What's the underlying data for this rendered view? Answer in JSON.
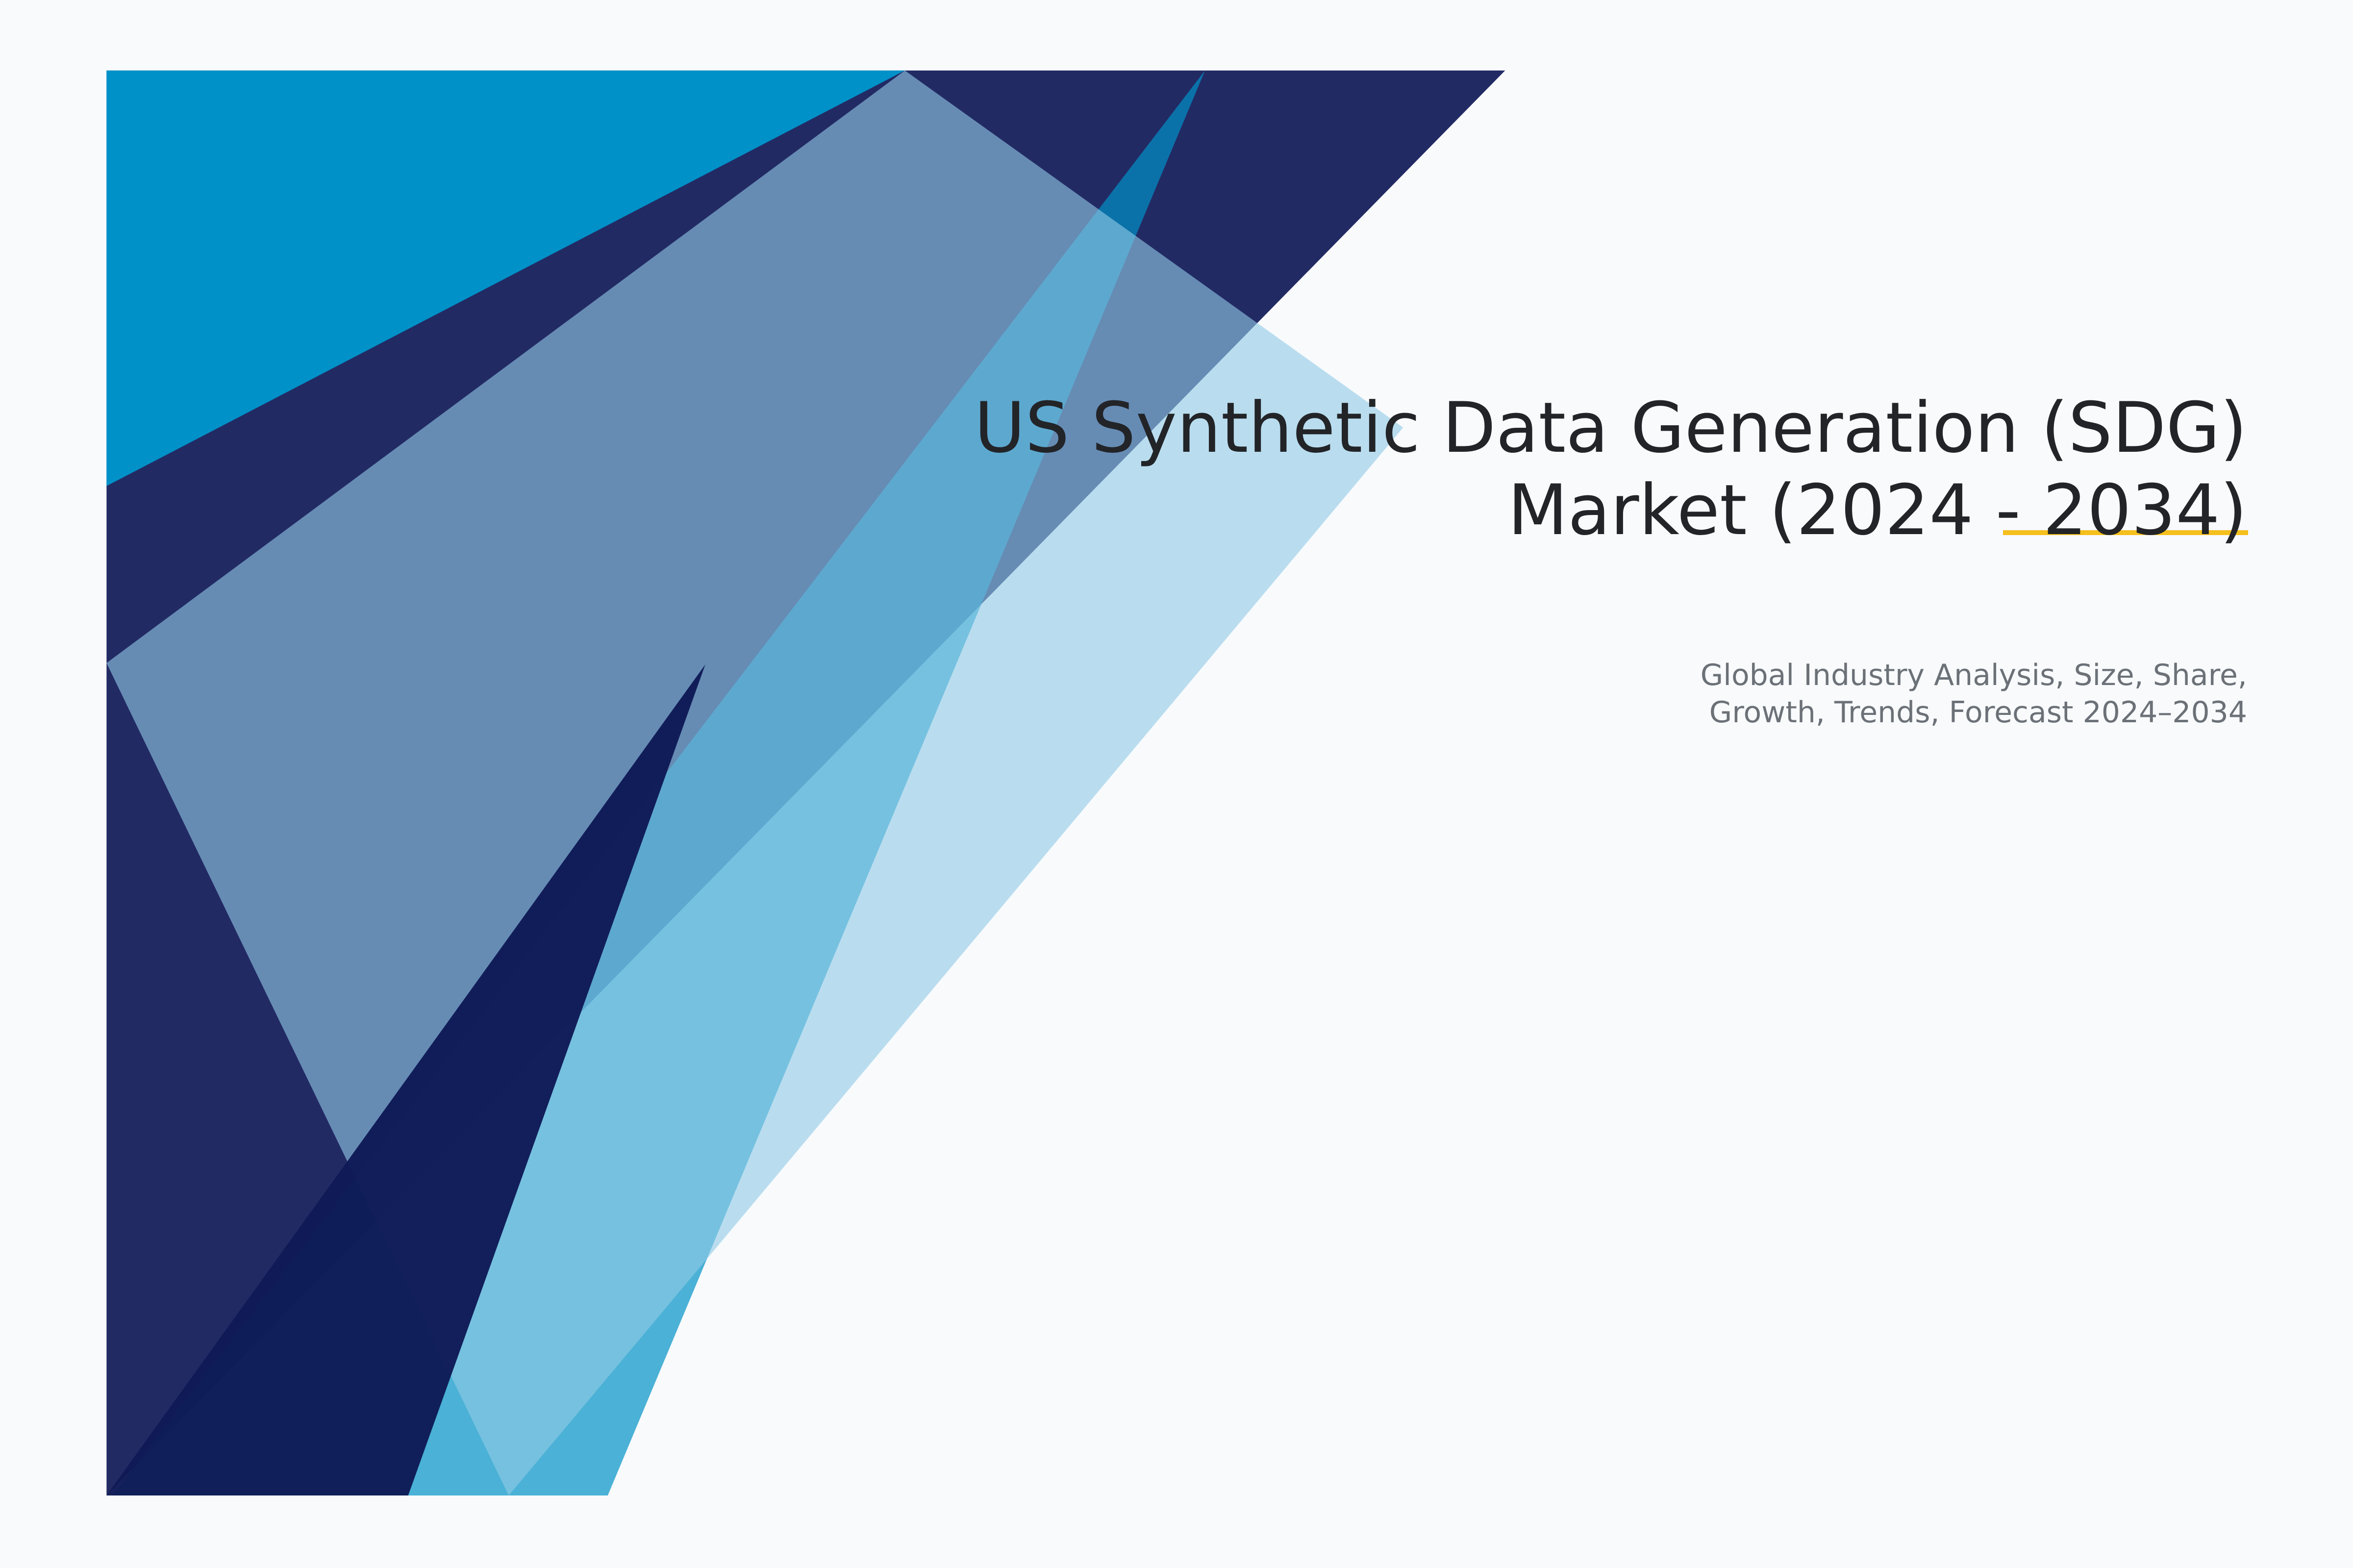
{
  "cover": {
    "title_line1": "US Synthetic Data Generation (SDG)",
    "title_line2": "Market (2024 - 2034)",
    "subtitle_line1": "Global Industry Analysis, Size, Share,",
    "subtitle_line2": "Growth, Trends, Forecast 2024–2034"
  },
  "colors": {
    "background": "#f8fafc",
    "navy": "#222a64",
    "cyan": "#0091c8",
    "strip_blue": "#0191c6",
    "light_blue": "#91cae7",
    "deep_navy": "#0e1a56",
    "accent_yellow": "#f5bf1d",
    "title_text": "#222428",
    "subtitle_text": "#6b7177"
  }
}
